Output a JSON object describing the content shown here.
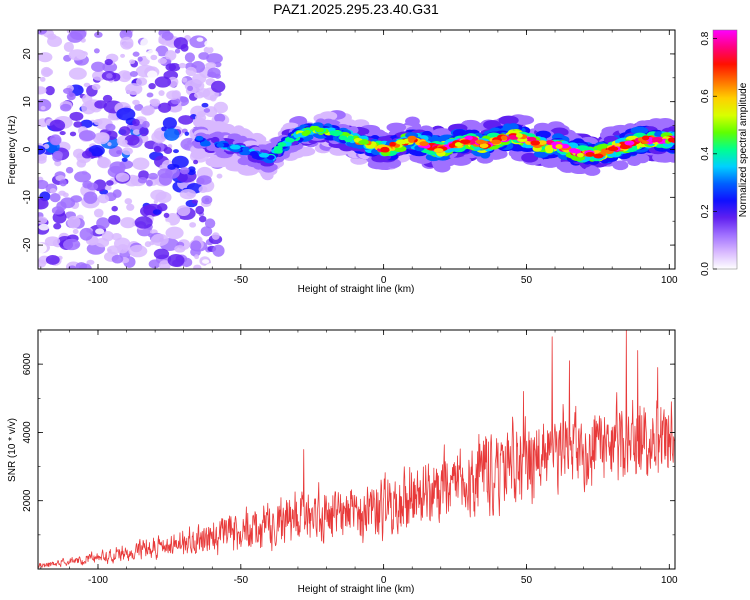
{
  "title": "PAZ1.2025.295.23.40.G31",
  "colors": {
    "snr_line": "#e83a3a",
    "cmap": [
      "#ffffff",
      "#d8b8ff",
      "#a070ff",
      "#6020f0",
      "#1010ff",
      "#0060ff",
      "#00d0ff",
      "#00ff90",
      "#60ff00",
      "#d8ff00",
      "#ffd000",
      "#ff7000",
      "#ff1000",
      "#ff0080",
      "#ff00ff"
    ]
  },
  "chart_data": [
    {
      "type": "heatmap",
      "name": "spectrogram",
      "xlabel": "Height of straight line (km)",
      "ylabel": "Frequency (Hz)",
      "xlim": [
        -121,
        102
      ],
      "ylim": [
        -25,
        25
      ],
      "x_ticks": [
        -100,
        -50,
        0,
        50,
        100
      ],
      "y_ticks": [
        -20,
        -10,
        0,
        10,
        20
      ],
      "x_tick_labels": [
        "-100",
        "-50",
        "0",
        "50",
        "100"
      ],
      "y_tick_labels": [
        "-20",
        "-10",
        "0",
        "10",
        "20"
      ],
      "colorbar": {
        "label": "Normalized spectral amplitude",
        "range": [
          0,
          0.83
        ],
        "ticks": [
          0.0,
          0.2,
          0.4,
          0.6,
          0.8
        ],
        "tick_labels": [
          "0.0",
          "0.2",
          "0.4",
          "0.6",
          "0.8"
        ]
      },
      "ridge": {
        "x": [
          -65,
          -60,
          -55,
          -50,
          -45,
          -40,
          -35,
          -30,
          -25,
          -20,
          -15,
          -10,
          -5,
          0,
          5,
          10,
          15,
          20,
          25,
          30,
          35,
          40,
          45,
          50,
          55,
          60,
          65,
          70,
          75,
          80,
          85,
          90,
          95,
          100
        ],
        "freq": [
          2,
          1,
          1,
          0,
          -1,
          -2,
          1,
          3,
          4,
          4,
          3,
          2,
          1,
          0,
          1,
          2,
          1,
          0,
          1,
          2,
          1,
          2,
          3,
          2,
          1,
          1,
          0,
          -1,
          -1,
          0,
          1,
          2,
          2,
          2
        ],
        "amplitude": [
          0.25,
          0.3,
          0.3,
          0.3,
          0.3,
          0.35,
          0.4,
          0.45,
          0.5,
          0.45,
          0.5,
          0.55,
          0.6,
          0.7,
          0.65,
          0.7,
          0.75,
          0.8,
          0.75,
          0.8,
          0.75,
          0.8,
          0.8,
          0.75,
          0.8,
          0.8,
          0.75,
          0.8,
          0.8,
          0.75,
          0.8,
          0.8,
          0.75,
          0.7
        ]
      },
      "noise_region": {
        "x_range": [
          -121,
          -65
        ],
        "freq_range": [
          -25,
          25
        ],
        "amplitude": 0.2
      }
    },
    {
      "type": "line",
      "name": "snr",
      "xlabel": "Height of straight line (km)",
      "ylabel": "SNR (10 * v/v)",
      "xlim": [
        -121,
        102
      ],
      "ylim": [
        0,
        7000
      ],
      "x_ticks": [
        -100,
        -50,
        0,
        50,
        100
      ],
      "y_ticks": [
        2000,
        4000,
        6000
      ],
      "x_tick_labels": [
        "-100",
        "-50",
        "0",
        "50",
        "100"
      ],
      "y_tick_labels": [
        "2000",
        "4000",
        "6000"
      ],
      "envelope_x": [
        -121,
        -110,
        -100,
        -90,
        -80,
        -70,
        -60,
        -50,
        -40,
        -30,
        -20,
        -10,
        0,
        10,
        20,
        30,
        40,
        50,
        60,
        70,
        80,
        90,
        100,
        102
      ],
      "envelope_y": [
        100,
        200,
        350,
        500,
        650,
        750,
        900,
        1100,
        1300,
        1500,
        1600,
        1700,
        1800,
        2000,
        2300,
        2600,
        2900,
        3200,
        3500,
        3600,
        3700,
        3800,
        3800,
        3800
      ],
      "spread_y": [
        80,
        150,
        250,
        350,
        450,
        550,
        650,
        750,
        900,
        1000,
        1100,
        1200,
        1200,
        1300,
        1400,
        1500,
        1500,
        1600,
        1600,
        1600,
        1600,
        1600,
        1500,
        1500
      ],
      "peaks": [
        {
          "x": -28,
          "y": 3500
        },
        {
          "x": 49,
          "y": 5200
        },
        {
          "x": 59,
          "y": 6800
        },
        {
          "x": 65,
          "y": 6100
        },
        {
          "x": 85,
          "y": 7000
        },
        {
          "x": 89,
          "y": 6400
        },
        {
          "x": 96,
          "y": 5900
        }
      ]
    }
  ]
}
